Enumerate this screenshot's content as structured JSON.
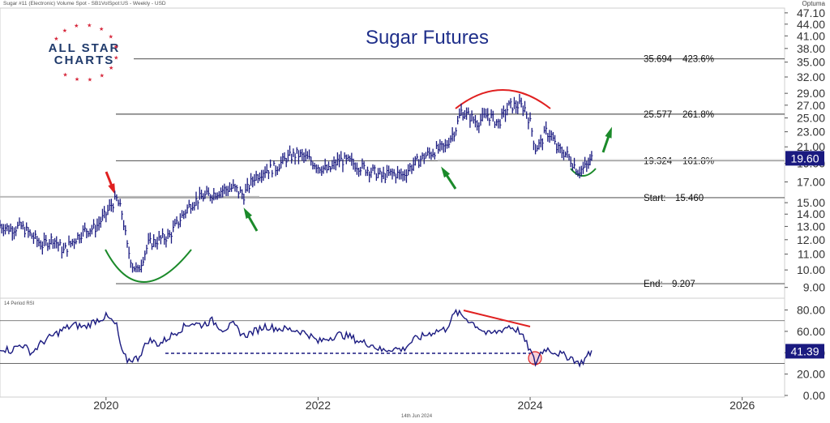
{
  "header": {
    "meta": "Sugar #11 (Electronic) Volume Spot - SB1VolSpot:US - Weekly - USD",
    "brand": "Optuma"
  },
  "logo": {
    "line1": "ALL STAR",
    "line2": "CHARTS"
  },
  "footer": {
    "date": "14th Jun 2024"
  },
  "chart_data": [
    {
      "type": "line",
      "title": "Sugar Futures",
      "y_axis": {
        "scale": "log",
        "range": [
          8.6,
          48
        ],
        "ticks": [
          "9.00",
          "10.00",
          "11.00",
          "12.00",
          "13.00",
          "14.00",
          "15.00",
          "17.00",
          "19.00",
          "21.00",
          "23.00",
          "25.00",
          "27.00",
          "29.00",
          "32.00",
          "35.00",
          "38.00",
          "41.00",
          "44.00",
          "47.10"
        ],
        "last_value_label": "19.60",
        "last_value_color": "#1a1a80"
      },
      "x_axis": {
        "range": [
          2019.0,
          2026.4
        ],
        "ticks": [
          "2020",
          "2022",
          "2024",
          "2026"
        ]
      },
      "series": [
        {
          "color": "#1a1a80",
          "points": [
            [
              2019.0,
              13.1
            ],
            [
              2019.1,
              12.8
            ],
            [
              2019.2,
              13.0
            ],
            [
              2019.3,
              12.3
            ],
            [
              2019.4,
              11.6
            ],
            [
              2019.5,
              12.1
            ],
            [
              2019.6,
              11.2
            ],
            [
              2019.7,
              12.0
            ],
            [
              2019.8,
              12.7
            ],
            [
              2019.9,
              12.9
            ],
            [
              2020.0,
              14.0
            ],
            [
              2020.05,
              14.8
            ],
            [
              2020.1,
              15.3
            ],
            [
              2020.15,
              14.1
            ],
            [
              2020.2,
              11.5
            ],
            [
              2020.25,
              10.3
            ],
            [
              2020.3,
              9.9
            ],
            [
              2020.35,
              10.8
            ],
            [
              2020.4,
              11.7
            ],
            [
              2020.5,
              12.0
            ],
            [
              2020.6,
              12.3
            ],
            [
              2020.7,
              13.6
            ],
            [
              2020.8,
              14.9
            ],
            [
              2020.9,
              15.5
            ],
            [
              2021.0,
              15.8
            ],
            [
              2021.1,
              16.2
            ],
            [
              2021.2,
              16.4
            ],
            [
              2021.3,
              15.7
            ],
            [
              2021.4,
              17.5
            ],
            [
              2021.5,
              18.3
            ],
            [
              2021.6,
              18.5
            ],
            [
              2021.7,
              19.6
            ],
            [
              2021.8,
              20.1
            ],
            [
              2021.9,
              19.6
            ],
            [
              2022.0,
              18.7
            ],
            [
              2022.1,
              18.2
            ],
            [
              2022.2,
              19.4
            ],
            [
              2022.3,
              19.2
            ],
            [
              2022.4,
              18.6
            ],
            [
              2022.5,
              18.2
            ],
            [
              2022.6,
              17.6
            ],
            [
              2022.7,
              17.9
            ],
            [
              2022.8,
              17.7
            ],
            [
              2022.9,
              18.9
            ],
            [
              2023.0,
              19.8
            ],
            [
              2023.1,
              20.5
            ],
            [
              2023.2,
              21.0
            ],
            [
              2023.3,
              23.5
            ],
            [
              2023.35,
              26.0
            ],
            [
              2023.45,
              25.0
            ],
            [
              2023.5,
              24.3
            ],
            [
              2023.6,
              25.5
            ],
            [
              2023.7,
              24.2
            ],
            [
              2023.8,
              26.8
            ],
            [
              2023.9,
              27.0
            ],
            [
              2023.95,
              26.5
            ],
            [
              2024.0,
              24.3
            ],
            [
              2024.05,
              20.8
            ],
            [
              2024.1,
              21.5
            ],
            [
              2024.15,
              23.0
            ],
            [
              2024.2,
              22.5
            ],
            [
              2024.25,
              20.8
            ],
            [
              2024.35,
              20.0
            ],
            [
              2024.4,
              19.1
            ],
            [
              2024.45,
              18.2
            ],
            [
              2024.5,
              18.4
            ],
            [
              2024.55,
              18.9
            ],
            [
              2024.58,
              19.6
            ]
          ]
        }
      ],
      "levels": [
        {
          "label_value": "35.694",
          "label_pct": "423.6%",
          "value": 35.694
        },
        {
          "label_value": "25.577",
          "label_pct": "261.8%",
          "value": 25.577
        },
        {
          "label_value": "19.324",
          "label_pct": "161.8%",
          "value": 19.324
        },
        {
          "label_value": "Start:",
          "label_pct": "15.460",
          "value": 15.46
        },
        {
          "label_value": "End:",
          "label_pct": "9.207",
          "value": 9.207
        }
      ]
    },
    {
      "type": "line",
      "title": "14 Period RSI",
      "y_axis": {
        "range": [
          0,
          88
        ],
        "ticks": [
          "80.00",
          "60.00",
          "40.00",
          "20.00",
          "0.00"
        ],
        "guides": [
          70,
          30
        ],
        "last_value_label": "41.39",
        "last_value_color": "#1a1a80"
      },
      "series": [
        {
          "color": "#1a1a80",
          "points": [
            [
              2019.0,
              45
            ],
            [
              2019.1,
              42
            ],
            [
              2019.2,
              48
            ],
            [
              2019.3,
              40
            ],
            [
              2019.4,
              50
            ],
            [
              2019.5,
              56
            ],
            [
              2019.6,
              62
            ],
            [
              2019.7,
              66
            ],
            [
              2019.8,
              64
            ],
            [
              2019.9,
              70
            ],
            [
              2020.0,
              74
            ],
            [
              2020.05,
              70
            ],
            [
              2020.1,
              65
            ],
            [
              2020.15,
              40
            ],
            [
              2020.2,
              33
            ],
            [
              2020.3,
              35
            ],
            [
              2020.4,
              52
            ],
            [
              2020.5,
              48
            ],
            [
              2020.6,
              55
            ],
            [
              2020.7,
              62
            ],
            [
              2020.8,
              68
            ],
            [
              2020.9,
              66
            ],
            [
              2021.0,
              70
            ],
            [
              2021.1,
              62
            ],
            [
              2021.2,
              66
            ],
            [
              2021.3,
              56
            ],
            [
              2021.4,
              60
            ],
            [
              2021.5,
              65
            ],
            [
              2021.6,
              63
            ],
            [
              2021.7,
              62
            ],
            [
              2021.8,
              61
            ],
            [
              2021.9,
              58
            ],
            [
              2022.0,
              50
            ],
            [
              2022.1,
              54
            ],
            [
              2022.2,
              57
            ],
            [
              2022.3,
              55
            ],
            [
              2022.4,
              50
            ],
            [
              2022.5,
              48
            ],
            [
              2022.6,
              42
            ],
            [
              2022.7,
              44
            ],
            [
              2022.8,
              43
            ],
            [
              2022.9,
              52
            ],
            [
              2023.0,
              56
            ],
            [
              2023.1,
              60
            ],
            [
              2023.2,
              62
            ],
            [
              2023.25,
              70
            ],
            [
              2023.3,
              78
            ],
            [
              2023.4,
              72
            ],
            [
              2023.5,
              65
            ],
            [
              2023.6,
              57
            ],
            [
              2023.7,
              60
            ],
            [
              2023.8,
              65
            ],
            [
              2023.9,
              60
            ],
            [
              2024.0,
              42
            ],
            [
              2024.05,
              30
            ],
            [
              2024.1,
              40
            ],
            [
              2024.15,
              44
            ],
            [
              2024.2,
              42
            ],
            [
              2024.3,
              38
            ],
            [
              2024.4,
              35
            ],
            [
              2024.45,
              30
            ],
            [
              2024.5,
              32
            ],
            [
              2024.55,
              38
            ],
            [
              2024.58,
              41.4
            ]
          ]
        }
      ]
    }
  ]
}
